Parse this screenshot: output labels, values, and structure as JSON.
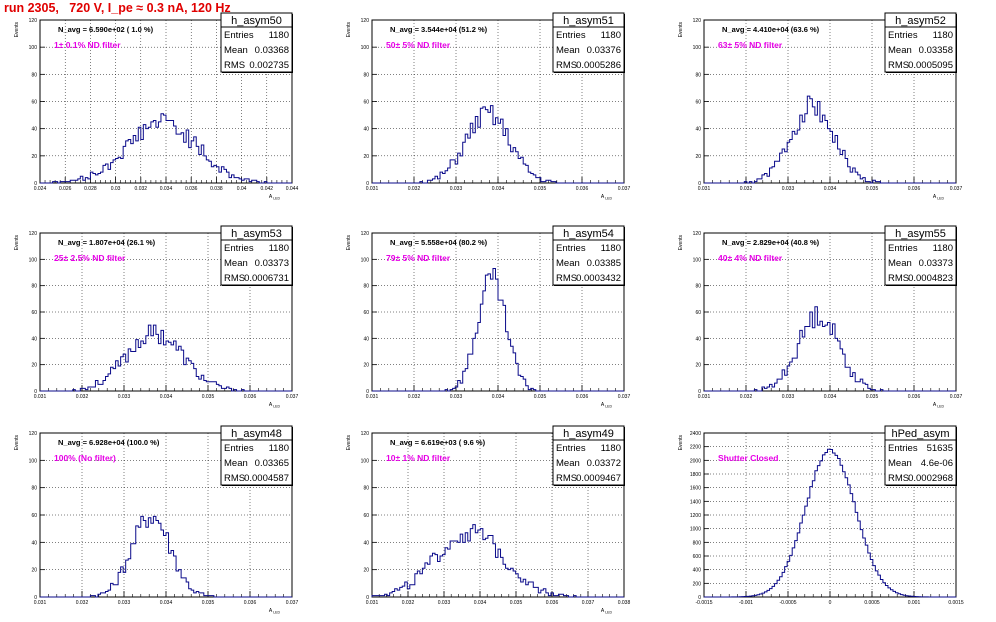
{
  "title": "run 2305,   720 V, I_pe ≈ 0.3 nA, 120 Hz",
  "chart_data": [
    {
      "type": "histogram",
      "name": "h_asym50",
      "navg": "N_avg = 6.590e+02 ( 1.0 %)",
      "filter": "1± 0.1% ND filter",
      "stats": [
        [
          "Entries",
          "1180"
        ],
        [
          "Mean",
          "0.03368"
        ],
        [
          "RMS",
          "0.002735"
        ]
      ],
      "xlim": [
        0.024,
        0.044
      ],
      "xticks": [
        "0.024",
        "0.026",
        "0.028",
        "0.03",
        "0.032",
        "0.034",
        "0.036",
        "0.038",
        "0.04",
        "0.042",
        "0.044"
      ],
      "ylim": [
        0,
        120
      ],
      "yticks": [
        "0",
        "20",
        "40",
        "60",
        "80",
        "100",
        "120"
      ],
      "ylabel": "Events",
      "xlabel": "A_LED",
      "mean": 0.03368,
      "rms": 0.002735,
      "peak": 45,
      "bins": 100,
      "seed": 50
    },
    {
      "type": "histogram",
      "name": "h_asym51",
      "navg": "N_avg = 3.544e+04 (51.2 %)",
      "filter": "50± 5% ND filter",
      "stats": [
        [
          "Entries",
          "1180"
        ],
        [
          "Mean",
          "0.03376"
        ],
        [
          "RMS",
          "0.0005286"
        ]
      ],
      "xlim": [
        0.031,
        0.037
      ],
      "xticks": [
        "0.031",
        "0.032",
        "0.033",
        "0.034",
        "0.035",
        "0.036",
        "0.037"
      ],
      "ylim": [
        0,
        120
      ],
      "yticks": [
        "0",
        "20",
        "40",
        "60",
        "80",
        "100",
        "120"
      ],
      "ylabel": "Events",
      "xlabel": "A_LED",
      "mean": 0.03376,
      "rms": 0.0005286,
      "peak": 50,
      "bins": 100,
      "seed": 51
    },
    {
      "type": "histogram",
      "name": "h_asym52",
      "navg": "N_avg = 4.410e+04 (63.6 %)",
      "filter": "63± 5% ND filter",
      "stats": [
        [
          "Entries",
          "1180"
        ],
        [
          "Mean",
          "0.03358"
        ],
        [
          "RMS",
          "0.0005095"
        ]
      ],
      "xlim": [
        0.031,
        0.037
      ],
      "xticks": [
        "0.031",
        "0.032",
        "0.033",
        "0.034",
        "0.035",
        "0.036",
        "0.037"
      ],
      "ylim": [
        0,
        120
      ],
      "yticks": [
        "0",
        "20",
        "40",
        "60",
        "80",
        "100",
        "120"
      ],
      "ylabel": "Events",
      "xlabel": "A_LED",
      "mean": 0.03358,
      "rms": 0.0005095,
      "peak": 57,
      "bins": 100,
      "seed": 52
    },
    {
      "type": "histogram",
      "name": "h_asym53",
      "navg": "N_avg = 1.807e+04 (26.1 %)",
      "filter": "25± 2.5% ND filter",
      "stats": [
        [
          "Entries",
          "1180"
        ],
        [
          "Mean",
          "0.03373"
        ],
        [
          "RMS",
          "0.0006731"
        ]
      ],
      "xlim": [
        0.031,
        0.037
      ],
      "xticks": [
        "0.031",
        "0.032",
        "0.033",
        "0.034",
        "0.035",
        "0.036",
        "0.037"
      ],
      "ylim": [
        0,
        120
      ],
      "yticks": [
        "0",
        "20",
        "40",
        "60",
        "80",
        "100",
        "120"
      ],
      "ylabel": "Events",
      "xlabel": "A_LED",
      "mean": 0.03373,
      "rms": 0.0006731,
      "peak": 44,
      "bins": 100,
      "seed": 53
    },
    {
      "type": "histogram",
      "name": "h_asym54",
      "navg": "N_avg = 5.558e+04 (80.2 %)",
      "filter": "79± 5% ND filter",
      "stats": [
        [
          "Entries",
          "1180"
        ],
        [
          "Mean",
          "0.03385"
        ],
        [
          "RMS",
          "0.0003432"
        ]
      ],
      "xlim": [
        0.031,
        0.037
      ],
      "xticks": [
        "0.031",
        "0.032",
        "0.033",
        "0.034",
        "0.035",
        "0.036",
        "0.037"
      ],
      "ylim": [
        0,
        120
      ],
      "yticks": [
        "0",
        "20",
        "40",
        "60",
        "80",
        "100",
        "120"
      ],
      "ylabel": "Events",
      "xlabel": "A_LED",
      "mean": 0.03385,
      "rms": 0.0003432,
      "peak": 84,
      "bins": 100,
      "seed": 54
    },
    {
      "type": "histogram",
      "name": "h_asym55",
      "navg": "N_avg = 2.829e+04 (40.8 %)",
      "filter": "40± 4% ND filter",
      "stats": [
        [
          "Entries",
          "1180"
        ],
        [
          "Mean",
          "0.03373"
        ],
        [
          "RMS",
          "0.0004823"
        ]
      ],
      "xlim": [
        0.031,
        0.037
      ],
      "xticks": [
        "0.031",
        "0.032",
        "0.033",
        "0.034",
        "0.035",
        "0.036",
        "0.037"
      ],
      "ylim": [
        0,
        120
      ],
      "yticks": [
        "0",
        "20",
        "40",
        "60",
        "80",
        "100",
        "120"
      ],
      "ylabel": "Events",
      "xlabel": "A_LED",
      "mean": 0.03373,
      "rms": 0.0004823,
      "peak": 58,
      "bins": 100,
      "seed": 55
    },
    {
      "type": "histogram",
      "name": "h_asym48",
      "navg": "N_avg = 6.928e+04 (100.0 %)",
      "filter": "100% (No filter)",
      "stats": [
        [
          "Entries",
          "1180"
        ],
        [
          "Mean",
          "0.03365"
        ],
        [
          "RMS",
          "0.0004587"
        ]
      ],
      "xlim": [
        0.031,
        0.037
      ],
      "xticks": [
        "0.031",
        "0.032",
        "0.033",
        "0.034",
        "0.035",
        "0.036",
        "0.037"
      ],
      "ylim": [
        0,
        120
      ],
      "yticks": [
        "0",
        "20",
        "40",
        "60",
        "80",
        "100",
        "120"
      ],
      "ylabel": "Events",
      "xlabel": "A_LED",
      "mean": 0.03365,
      "rms": 0.0004587,
      "peak": 60,
      "bins": 100,
      "seed": 48
    },
    {
      "type": "histogram",
      "name": "h_asym49",
      "navg": "N_avg = 6.619e+03 ( 9.6 %)",
      "filter": "10± 1% ND filter",
      "stats": [
        [
          "Entries",
          "1180"
        ],
        [
          "Mean",
          "0.03372"
        ],
        [
          "RMS",
          "0.0009467"
        ]
      ],
      "xlim": [
        0.031,
        0.038
      ],
      "xticks": [
        "0.031",
        "0.032",
        "0.033",
        "0.034",
        "0.035",
        "0.036",
        "0.037",
        "0.038"
      ],
      "ylim": [
        0,
        120
      ],
      "yticks": [
        "0",
        "20",
        "40",
        "60",
        "80",
        "100",
        "120"
      ],
      "ylabel": "Events",
      "xlabel": "A_LED",
      "mean": 0.03372,
      "rms": 0.0009467,
      "peak": 47,
      "bins": 100,
      "seed": 49
    },
    {
      "type": "histogram",
      "name": "hPed_asym",
      "navg": "",
      "filter": "Shutter Closed",
      "stats": [
        [
          "Entries",
          "51635"
        ],
        [
          "Mean",
          "4.6e-06"
        ],
        [
          "RMS",
          "0.0002968"
        ]
      ],
      "xlim": [
        -0.0015,
        0.0015
      ],
      "xticks": [
        "-0.0015",
        "-0.001",
        "-0.0005",
        "0",
        "0.0005",
        "0.001",
        "0.0015"
      ],
      "ylim": [
        0,
        2400
      ],
      "yticks": [
        "0",
        "200",
        "400",
        "600",
        "800",
        "1000",
        "1200",
        "1400",
        "1600",
        "1800",
        "2000",
        "2200",
        "2400"
      ],
      "ylabel": "Events",
      "xlabel": "",
      "mean": 4.6e-06,
      "rms": 0.0002968,
      "peak": 2150,
      "bins": 100,
      "seed": 7,
      "smooth": true
    }
  ]
}
